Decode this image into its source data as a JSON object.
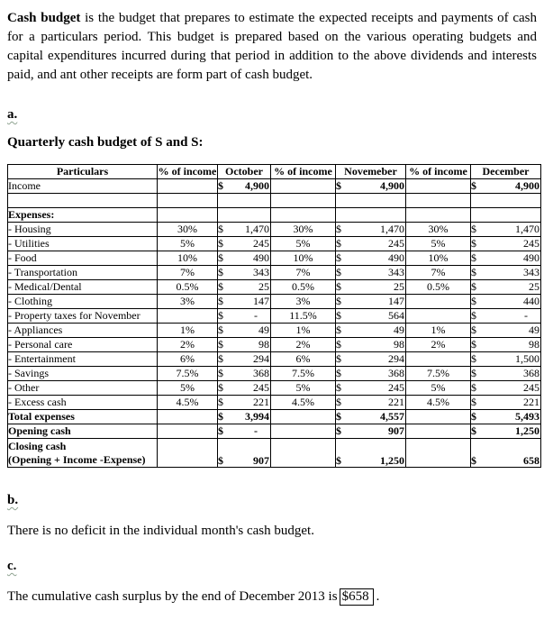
{
  "intro": {
    "bold_lead": "Cash budget",
    "text": " is the budget that prepares to estimate the expected receipts and payments of cash for a particulars period. This budget is prepared based on the various operating budgets and capital expenditures incurred during that period in addition to the above dividends and interests paid, and ant other receipts are form part of cash budget."
  },
  "section_a": {
    "label": "a.",
    "title": "Quarterly cash budget of S and S:"
  },
  "table": {
    "currency_symbol": "$",
    "headers": [
      "Particulars",
      "% of income",
      "October",
      "% of income",
      "Novemeber",
      "% of income",
      "December"
    ],
    "rows": [
      {
        "label": [
          "Income"
        ],
        "labelBold": false,
        "amtBold": true,
        "pct": [
          "",
          "",
          ""
        ],
        "amt": [
          "4,900",
          "4,900",
          "4,900"
        ]
      },
      {
        "label": [
          ""
        ],
        "labelBold": false,
        "amtBold": false,
        "pct": [
          "",
          "",
          ""
        ],
        "amt": [
          "",
          "",
          ""
        ]
      },
      {
        "label": [
          "Expenses:"
        ],
        "labelBold": true,
        "amtBold": false,
        "pct": [
          "",
          "",
          ""
        ],
        "amt": [
          "",
          "",
          ""
        ]
      },
      {
        "label": [
          "- Housing"
        ],
        "labelBold": false,
        "amtBold": false,
        "pct": [
          "30%",
          "30%",
          "30%"
        ],
        "amt": [
          "1,470",
          "1,470",
          "1,470"
        ]
      },
      {
        "label": [
          "- Utilities"
        ],
        "labelBold": false,
        "amtBold": false,
        "pct": [
          "5%",
          "5%",
          "5%"
        ],
        "amt": [
          "245",
          "245",
          "245"
        ]
      },
      {
        "label": [
          "- Food"
        ],
        "labelBold": false,
        "amtBold": false,
        "pct": [
          "10%",
          "10%",
          "10%"
        ],
        "amt": [
          "490",
          "490",
          "490"
        ]
      },
      {
        "label": [
          "- Transportation"
        ],
        "labelBold": false,
        "amtBold": false,
        "pct": [
          "7%",
          "7%",
          "7%"
        ],
        "amt": [
          "343",
          "343",
          "343"
        ]
      },
      {
        "label": [
          "- Medical/Dental"
        ],
        "labelBold": false,
        "amtBold": false,
        "pct": [
          "0.5%",
          "0.5%",
          "0.5%"
        ],
        "amt": [
          "25",
          "25",
          "25"
        ]
      },
      {
        "label": [
          "- Clothing"
        ],
        "labelBold": false,
        "amtBold": false,
        "pct": [
          "3%",
          "3%",
          ""
        ],
        "amt": [
          "147",
          "147",
          "440"
        ]
      },
      {
        "label": [
          "- Property taxes for November"
        ],
        "labelBold": false,
        "amtBold": false,
        "pct": [
          "",
          "11.5%",
          ""
        ],
        "amt": [
          "-",
          "564",
          "-"
        ]
      },
      {
        "label": [
          "- Appliances"
        ],
        "labelBold": false,
        "amtBold": false,
        "pct": [
          "1%",
          "1%",
          "1%"
        ],
        "amt": [
          "49",
          "49",
          "49"
        ]
      },
      {
        "label": [
          "- Personal care"
        ],
        "labelBold": false,
        "amtBold": false,
        "pct": [
          "2%",
          "2%",
          "2%"
        ],
        "amt": [
          "98",
          "98",
          "98"
        ]
      },
      {
        "label": [
          "- Entertainment"
        ],
        "labelBold": false,
        "amtBold": false,
        "pct": [
          "6%",
          "6%",
          ""
        ],
        "amt": [
          "294",
          "294",
          "1,500"
        ]
      },
      {
        "label": [
          "- Savings"
        ],
        "labelBold": false,
        "amtBold": false,
        "pct": [
          "7.5%",
          "7.5%",
          "7.5%"
        ],
        "amt": [
          "368",
          "368",
          "368"
        ]
      },
      {
        "label": [
          "- Other"
        ],
        "labelBold": false,
        "amtBold": false,
        "pct": [
          "5%",
          "5%",
          "5%"
        ],
        "amt": [
          "245",
          "245",
          "245"
        ]
      },
      {
        "label": [
          "- Excess cash"
        ],
        "labelBold": false,
        "amtBold": false,
        "pct": [
          "4.5%",
          "4.5%",
          "4.5%"
        ],
        "amt": [
          "221",
          "221",
          "221"
        ]
      },
      {
        "label": [
          "Total expenses"
        ],
        "labelBold": true,
        "amtBold": true,
        "pct": [
          "",
          "",
          ""
        ],
        "amt": [
          "3,994",
          "4,557",
          "5,493"
        ]
      },
      {
        "label": [
          "Opening cash"
        ],
        "labelBold": true,
        "amtBold": true,
        "pct": [
          "",
          "",
          ""
        ],
        "amt": [
          "-",
          "907",
          "1,250"
        ]
      },
      {
        "label": [
          "Closing cash",
          "(Opening + Income -Expense)"
        ],
        "labelBold": true,
        "amtBold": true,
        "tall": true,
        "pct": [
          "",
          "",
          ""
        ],
        "amt": [
          "907",
          "1,250",
          "658"
        ]
      }
    ]
  },
  "section_b": {
    "label": "b.",
    "text": "There is no deficit in the individual month's cash budget."
  },
  "section_c": {
    "label": "c.",
    "text_before": "The cumulative cash surplus by the end of December 2013 is",
    "boxed_value": "$658",
    "text_after": "."
  }
}
